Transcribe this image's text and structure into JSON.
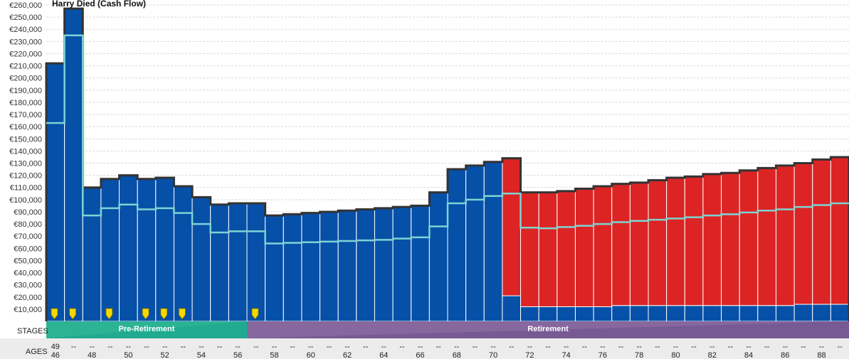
{
  "chart_data": {
    "type": "bar",
    "title": "Harry Died  (Cash Flow)",
    "ylim": [
      0,
      260000
    ],
    "y_ticks": [
      "€10,000",
      "€20,000",
      "€30,000",
      "€40,000",
      "€50,000",
      "€60,000",
      "€70,000",
      "€80,000",
      "€90,000",
      "€100,000",
      "€110,000",
      "€120,000",
      "€130,000",
      "€140,000",
      "€150,000",
      "€160,000",
      "€170,000",
      "€180,000",
      "€190,000",
      "€200,000",
      "€210,000",
      "€220,000",
      "€230,000",
      "€240,000",
      "€250,000",
      "€260,000"
    ],
    "grid": true,
    "series": [
      {
        "color": "#0650a8",
        "values": [
          212000,
          257000,
          110000,
          117000,
          120000,
          117000,
          118000,
          111000,
          102000,
          96000,
          97000,
          97000,
          87000,
          88000,
          89000,
          90000,
          91000,
          92000,
          93000,
          94000,
          95000,
          106000,
          125000,
          128000,
          131000,
          21000,
          12000,
          12000,
          12000,
          12000,
          12000,
          13000,
          13000,
          13000,
          13000,
          13000,
          13000,
          13000,
          13000,
          13000,
          13000,
          14000,
          14000,
          14000
        ]
      },
      {
        "color": "#dc2424",
        "values": [
          0,
          0,
          0,
          0,
          0,
          0,
          0,
          0,
          0,
          0,
          0,
          0,
          0,
          0,
          0,
          0,
          0,
          0,
          0,
          0,
          0,
          0,
          0,
          0,
          0,
          113000,
          94000,
          94000,
          95000,
          97000,
          99000,
          100000,
          101000,
          103000,
          105000,
          106000,
          108000,
          109000,
          111000,
          113000,
          115000,
          116000,
          119000,
          121000
        ]
      }
    ],
    "line": {
      "color": "#7fd3d3",
      "values": [
        163000,
        235000,
        87000,
        93000,
        96000,
        92000,
        93000,
        89000,
        80000,
        73000,
        74000,
        74000,
        64000,
        64500,
        65000,
        65500,
        66000,
        66500,
        67000,
        68000,
        69000,
        78000,
        97000,
        100000,
        103000,
        105000,
        77000,
        76500,
        77500,
        78500,
        80000,
        81500,
        82500,
        83500,
        84500,
        85500,
        87000,
        88000,
        89500,
        91000,
        92000,
        94000,
        95500,
        97000
      ]
    },
    "markers": [
      0,
      1,
      3,
      5,
      6,
      7,
      11
    ],
    "marker_color": "#f5d800",
    "stages": [
      {
        "label": "Pre-Retirement",
        "start": 0,
        "end": 11,
        "color": "#2bb394",
        "accent": "#17a38a"
      },
      {
        "label": "Retirement",
        "start": 11,
        "end": 44,
        "color": "#86679e",
        "accent": "#6c4e8c"
      }
    ],
    "ages_top": [
      "49",
      "--",
      "--",
      "--",
      "--",
      "--",
      "--",
      "--",
      "--",
      "--",
      "--",
      "--",
      "--",
      "--",
      "--",
      "--",
      "--",
      "--",
      "--",
      "--",
      "--",
      "--",
      "--",
      "--",
      "--",
      "--",
      "--",
      "--",
      "--",
      "--",
      "--",
      "--",
      "--",
      "--",
      "--",
      "--",
      "--",
      "--",
      "--",
      "--",
      "--",
      "--",
      "--",
      "--"
    ],
    "ages_bottom": [
      "46",
      "",
      "48",
      "",
      "50",
      "",
      "52",
      "",
      "54",
      "",
      "56",
      "",
      "58",
      "",
      "60",
      "",
      "62",
      "",
      "64",
      "",
      "66",
      "",
      "68",
      "",
      "70",
      "",
      "72",
      "",
      "74",
      "",
      "76",
      "",
      "78",
      "",
      "80",
      "",
      "82",
      "",
      "84",
      "",
      "86",
      "",
      "88",
      ""
    ],
    "row_labels": {
      "stages": "STAGES",
      "ages": "AGES"
    }
  }
}
